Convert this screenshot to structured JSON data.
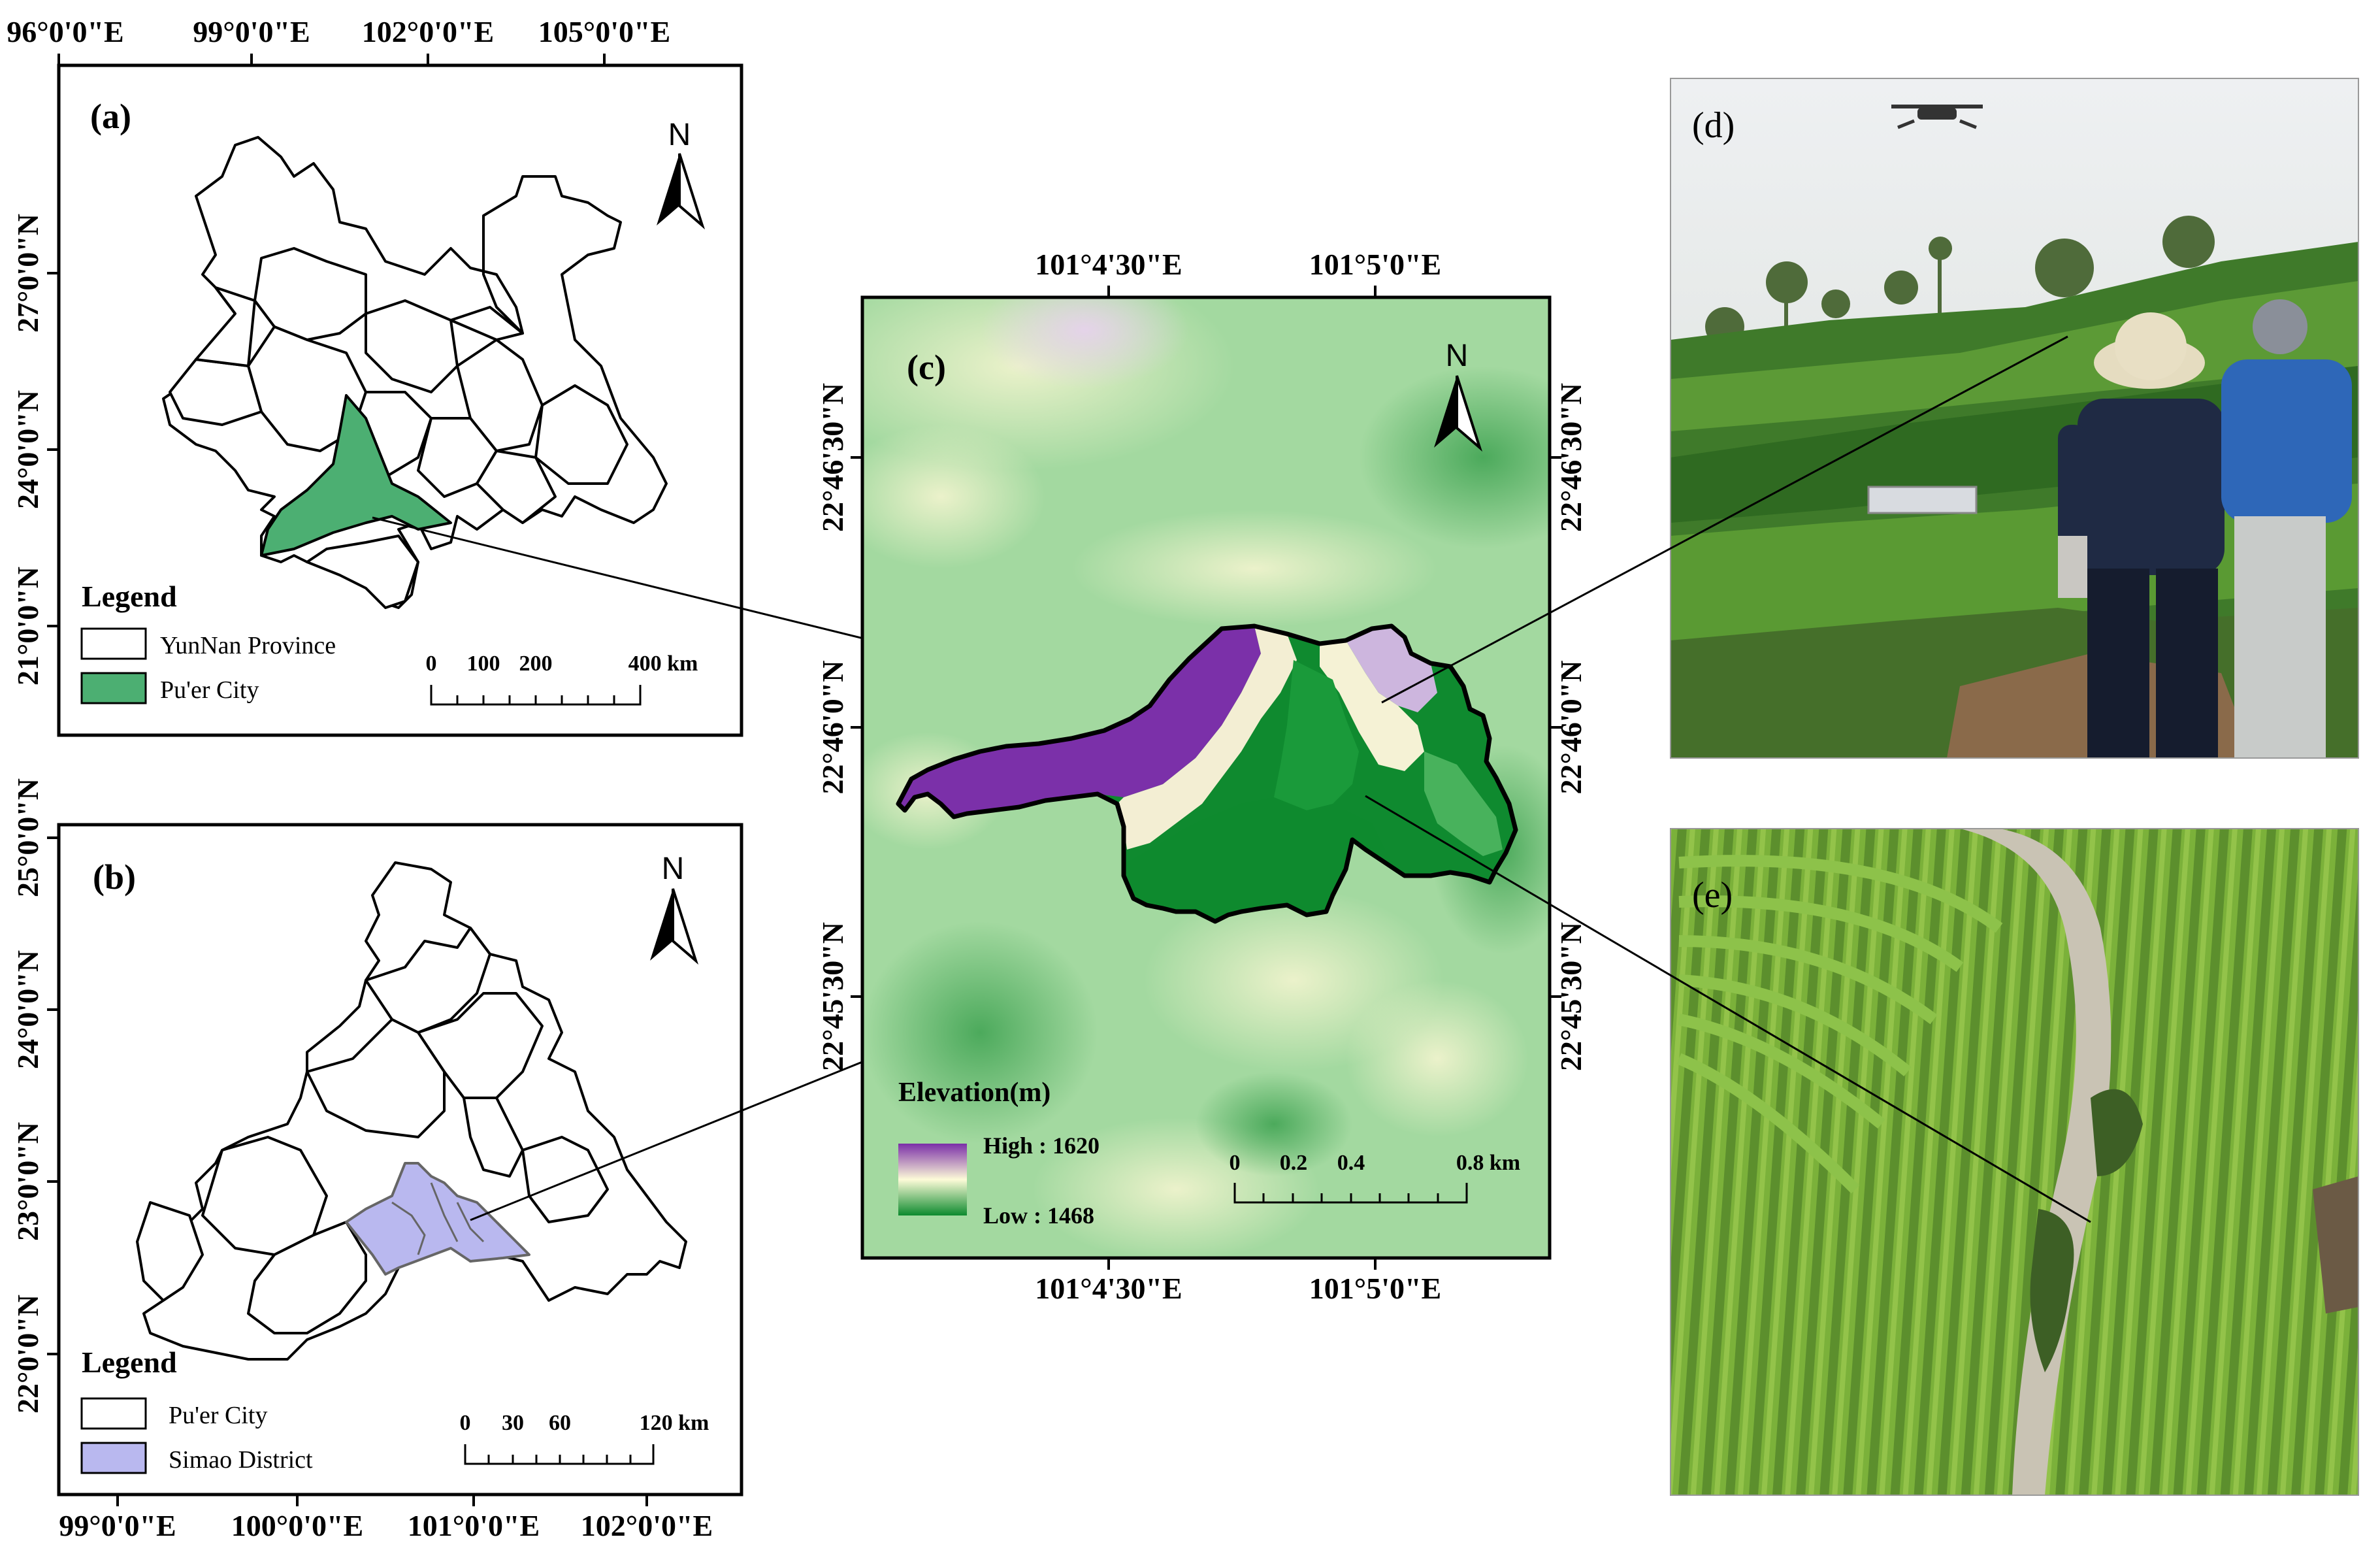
{
  "panel_a": {
    "label": "(a)",
    "top_ticks": [
      "96°0'0\"E",
      "99°0'0\"E",
      "102°0'0\"E",
      "105°0'0\"E"
    ],
    "left_ticks": [
      "27°0'0\"N",
      "24°0'0\"N",
      "21°0'0\"N"
    ],
    "north": "N",
    "legend_title": "Legend",
    "legend": [
      "YunNan Province",
      "Pu'er City"
    ],
    "legend_colors": [
      "#ffffff",
      "#4caf72"
    ],
    "scale_labels": [
      "0",
      "100",
      "200",
      "400 km"
    ]
  },
  "panel_b": {
    "label": "(b)",
    "bottom_ticks": [
      "99°0'0\"E",
      "100°0'0\"E",
      "101°0'0\"E",
      "102°0'0\"E"
    ],
    "left_ticks": [
      "25°0'0\"N",
      "24°0'0\"N",
      "23°0'0\"N",
      "22°0'0\"N"
    ],
    "north": "N",
    "legend_title": "Legend",
    "legend": [
      "Pu'er City",
      "Simao District"
    ],
    "legend_colors": [
      "#ffffff",
      "#b9b8ef"
    ],
    "scale_labels": [
      "0",
      "30",
      "60",
      "120 km"
    ]
  },
  "panel_c": {
    "label": "(c)",
    "top_ticks": [
      "101°4'30\"E",
      "101°5'0\"E"
    ],
    "bottom_ticks": [
      "101°4'30\"E",
      "101°5'0\"E"
    ],
    "left_ticks": [
      "22°46'30\"N",
      "22°46'0\"N",
      "22°45'30\"N"
    ],
    "right_ticks": [
      "22°46'30\"N",
      "22°46'0\"N",
      "22°45'30\"N"
    ],
    "north": "N",
    "legend_title": "Elevation(m)",
    "high": "High : 1620",
    "low": "Low : 1468",
    "ramp_colors": [
      "#7b2fa8",
      "#fdfbd8",
      "#0d8a2e"
    ],
    "scale_labels": [
      "0",
      "0.2",
      "0.4",
      "0.8 km"
    ]
  },
  "panel_d": {
    "label": "(d)"
  },
  "panel_e": {
    "label": "(e)"
  }
}
